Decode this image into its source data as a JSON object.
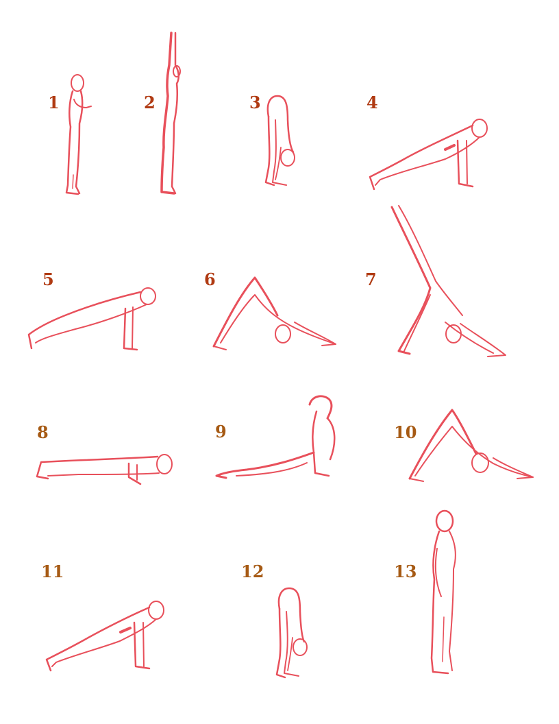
{
  "colors": {
    "figure_stroke": "#e8505b",
    "number_red": "#b03a12",
    "number_brown": "#a65a14"
  },
  "steps": [
    {
      "number": "1",
      "pose": "standing-palms-together"
    },
    {
      "number": "2",
      "pose": "arms-raised-overhead"
    },
    {
      "number": "3",
      "pose": "standing-forward-fold"
    },
    {
      "number": "4",
      "pose": "low-lunge"
    },
    {
      "number": "5",
      "pose": "plank"
    },
    {
      "number": "6",
      "pose": "downward-dog"
    },
    {
      "number": "7",
      "pose": "three-legged-downward-dog"
    },
    {
      "number": "8",
      "pose": "chaturanga-low-plank"
    },
    {
      "number": "9",
      "pose": "upward-dog-cobra"
    },
    {
      "number": "10",
      "pose": "downward-dog"
    },
    {
      "number": "11",
      "pose": "low-lunge"
    },
    {
      "number": "12",
      "pose": "standing-forward-fold"
    },
    {
      "number": "13",
      "pose": "standing"
    }
  ]
}
